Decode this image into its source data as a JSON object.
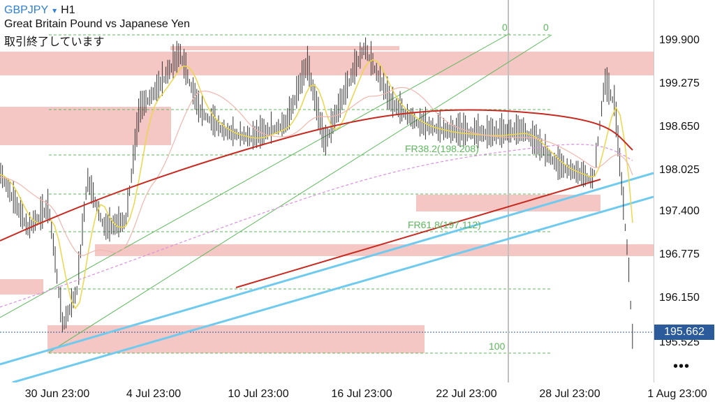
{
  "header": {
    "symbol": "GBPJPY",
    "caret": "▾",
    "timeframe": "H1",
    "description": "Great Britain Pound vs Japanese Yen",
    "status": "取引終了しています"
  },
  "price_axis": {
    "labels": [
      "199.900",
      "199.275",
      "198.650",
      "198.025",
      "197.400",
      "196.775",
      "196.150",
      "195.525"
    ],
    "current_price": "195.662"
  },
  "time_axis": {
    "labels": [
      "30 Jun 23:00",
      "4 Jul 23:00",
      "10 Jul 23:00",
      "16 Jul 23:00",
      "22 Jul 23:00",
      "28 Jul 23:00",
      "1 Aug 23:00"
    ]
  },
  "fib_labels": {
    "level0_a": "0",
    "level0_b": "0",
    "fr38": "FR38.2(198.208)",
    "fr61": "FR61.8(197.112)",
    "level100": "100"
  },
  "menu": {
    "more_label": "•••"
  },
  "colors": {
    "zone": "#f4c6c4",
    "fib": "#5bb85b",
    "trend_blue": "#6fcaf0",
    "ma_red": "#c62a20",
    "ma_yellow": "#ecd64a",
    "ma_pink": "#f2b6ae",
    "ma_violet": "#d98ee0",
    "price_badge": "#2c5b9c"
  },
  "icons": {
    "caret": "caret-down-icon",
    "more": "more-dots-icon"
  }
}
